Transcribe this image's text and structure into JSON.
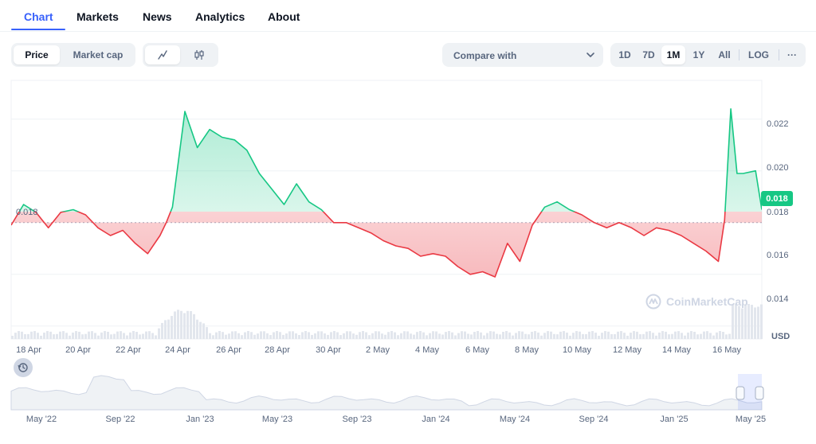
{
  "tabs": [
    {
      "label": "Chart",
      "active": true
    },
    {
      "label": "Markets",
      "active": false
    },
    {
      "label": "News",
      "active": false
    },
    {
      "label": "Analytics",
      "active": false
    },
    {
      "label": "About",
      "active": false
    }
  ],
  "toolbar": {
    "metric_buttons": [
      {
        "label": "Price",
        "active": true
      },
      {
        "label": "Market cap",
        "active": false
      }
    ],
    "chart_type_icons": [
      "line-chart-icon",
      "candlestick-icon"
    ],
    "compare_label": "Compare with",
    "ranges": [
      {
        "label": "1D",
        "active": false
      },
      {
        "label": "7D",
        "active": false
      },
      {
        "label": "1M",
        "active": true
      },
      {
        "label": "1Y",
        "active": false
      },
      {
        "label": "All",
        "active": false
      },
      {
        "label": "LOG",
        "active": false
      },
      {
        "label": "···",
        "active": false
      }
    ]
  },
  "colors": {
    "accent": "#3861fb",
    "up": "#16c784",
    "down": "#ea3943"
  },
  "chart": {
    "base_value_label": "0.018",
    "current_price_label": "0.018",
    "currency": "USD",
    "watermark": "CoinMarketCap",
    "y_ticks": [
      "0.022",
      "0.020",
      "0.018",
      "0.016",
      "0.014"
    ],
    "x_ticks": [
      "18 Apr",
      "20 Apr",
      "22 Apr",
      "24 Apr",
      "26 Apr",
      "28 Apr",
      "30 Apr",
      "2 May",
      "4 May",
      "6 May",
      "8 May",
      "10 May",
      "12 May",
      "14 May",
      "16 May"
    ],
    "navigator_ticks": [
      "May '22",
      "Sep '22",
      "Jan '23",
      "May '23",
      "Sep '23",
      "Jan '24",
      "May '24",
      "Sep '24",
      "Jan '25",
      "May '25"
    ]
  },
  "chart_data": {
    "type": "area",
    "ylim": [
      0.0135,
      0.0235
    ],
    "baseline": 0.018,
    "x": [
      17.5,
      18.0,
      18.5,
      19.0,
      19.5,
      20.0,
      20.5,
      21.0,
      21.5,
      22.0,
      22.5,
      23.0,
      23.5,
      23.75,
      24.0,
      24.5,
      25.0,
      25.5,
      26.0,
      26.5,
      27.0,
      27.5,
      28.0,
      28.5,
      29.0,
      29.5,
      30.0,
      30.5,
      31.0,
      31.5,
      32.0,
      32.5,
      33.0,
      33.5,
      34.0,
      34.5,
      35.0,
      35.5,
      36.0,
      36.5,
      37.0,
      37.5,
      38.0,
      38.5,
      39.0,
      39.5,
      40.0,
      40.5,
      41.0,
      41.5,
      42.0,
      42.5,
      43.0,
      43.5,
      44.0,
      44.5,
      45.0,
      45.5,
      46.0,
      46.25,
      46.5,
      46.75,
      47.0,
      47.5,
      47.75
    ],
    "y": [
      0.0179,
      0.0187,
      0.0184,
      0.0178,
      0.0184,
      0.0185,
      0.0183,
      0.0178,
      0.0175,
      0.0177,
      0.0172,
      0.0168,
      0.0175,
      0.018,
      0.0186,
      0.0223,
      0.0209,
      0.0216,
      0.0213,
      0.0212,
      0.0208,
      0.0199,
      0.0193,
      0.0187,
      0.0195,
      0.0188,
      0.0185,
      0.018,
      0.018,
      0.0178,
      0.0176,
      0.0173,
      0.0171,
      0.017,
      0.0167,
      0.0168,
      0.0167,
      0.0163,
      0.016,
      0.0161,
      0.0159,
      0.0172,
      0.0165,
      0.0179,
      0.0186,
      0.0188,
      0.0185,
      0.0183,
      0.018,
      0.0178,
      0.018,
      0.0178,
      0.0175,
      0.0178,
      0.0177,
      0.0175,
      0.0172,
      0.0169,
      0.0165,
      0.0181,
      0.0224,
      0.0199,
      0.0199,
      0.02,
      0.0185
    ],
    "xlabel": "",
    "ylabel": "USD",
    "grid": true,
    "legend": "none"
  }
}
